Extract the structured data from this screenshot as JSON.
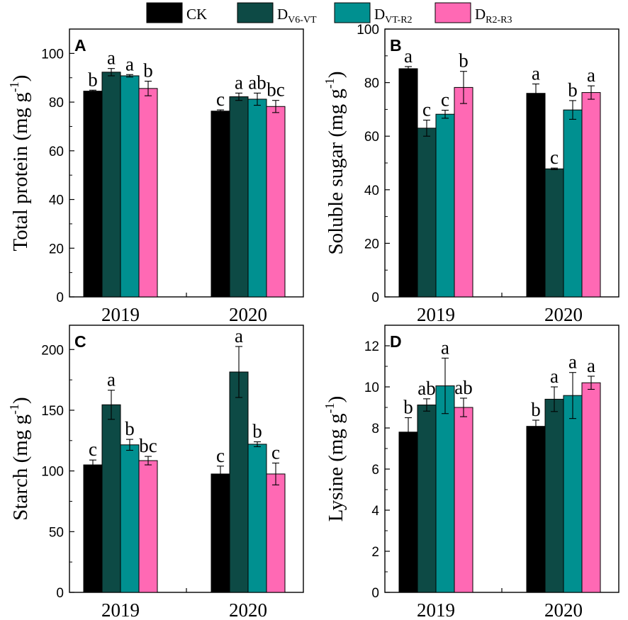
{
  "legend": {
    "items": [
      {
        "main": "CK",
        "sub": "",
        "color": "#000000"
      },
      {
        "main": "D",
        "sub": "V6-VT",
        "color": "#0d4a45"
      },
      {
        "main": "D",
        "sub": "VT-R2",
        "color": "#009090"
      },
      {
        "main": "D",
        "sub": "R2-R3",
        "color": "#ff69b4"
      }
    ]
  },
  "chart_data": [
    {
      "type": "bar",
      "panel": "A",
      "ylabel": "Total protein (mg g",
      "ylabel_sup": "-1",
      "ylabel_end": ")",
      "categories": [
        "2019",
        "2020"
      ],
      "ylim": [
        0,
        110
      ],
      "yticks": [
        0,
        20,
        40,
        60,
        80,
        100
      ],
      "series": [
        {
          "name": "CK",
          "values": [
            84.5,
            76.3
          ],
          "errors": [
            0.4,
            0.5
          ],
          "letters": [
            "b",
            "c"
          ]
        },
        {
          "name": "DV6-VT",
          "values": [
            92.3,
            82.2
          ],
          "errors": [
            1.5,
            1.5
          ],
          "letters": [
            "a",
            "a"
          ]
        },
        {
          "name": "DVT-R2",
          "values": [
            90.8,
            81.2
          ],
          "errors": [
            0.5,
            2.5
          ],
          "letters": [
            "a",
            "ab"
          ]
        },
        {
          "name": "DR2-R3",
          "values": [
            85.6,
            78.2
          ],
          "errors": [
            3.0,
            2.5
          ],
          "letters": [
            "b",
            "bc"
          ]
        }
      ]
    },
    {
      "type": "bar",
      "panel": "B",
      "ylabel": "Soluble sugar (mg g",
      "ylabel_sup": "-1",
      "ylabel_end": ")",
      "categories": [
        "2019",
        "2020"
      ],
      "ylim": [
        0,
        100
      ],
      "yticks": [
        0,
        20,
        40,
        60,
        80,
        100
      ],
      "series": [
        {
          "name": "CK",
          "values": [
            85.2,
            76.0
          ],
          "errors": [
            0.8,
            3.5
          ],
          "letters": [
            "a",
            "a"
          ]
        },
        {
          "name": "DV6-VT",
          "values": [
            63.0,
            47.8
          ],
          "errors": [
            3.0,
            0.3
          ],
          "letters": [
            "c",
            "c"
          ]
        },
        {
          "name": "DVT-R2",
          "values": [
            68.2,
            69.8
          ],
          "errors": [
            1.5,
            3.5
          ],
          "letters": [
            "c",
            "b"
          ]
        },
        {
          "name": "DR2-R3",
          "values": [
            78.2,
            76.3
          ],
          "errors": [
            6.0,
            2.5
          ],
          "letters": [
            "b",
            "a"
          ]
        }
      ]
    },
    {
      "type": "bar",
      "panel": "C",
      "ylabel": "Starch (mg g",
      "ylabel_sup": "-1",
      "ylabel_end": ")",
      "categories": [
        "2019",
        "2020"
      ],
      "ylim": [
        0,
        220
      ],
      "yticks": [
        0,
        50,
        100,
        150,
        200
      ],
      "series": [
        {
          "name": "CK",
          "values": [
            105,
            97.5
          ],
          "errors": [
            4,
            6.5
          ],
          "letters": [
            "c",
            "c"
          ]
        },
        {
          "name": "DV6-VT",
          "values": [
            154.5,
            181.5
          ],
          "errors": [
            12,
            21
          ],
          "letters": [
            "a",
            "a"
          ]
        },
        {
          "name": "DVT-R2",
          "values": [
            121.5,
            122
          ],
          "errors": [
            4.5,
            2
          ],
          "letters": [
            "b",
            "b"
          ]
        },
        {
          "name": "DR2-R3",
          "values": [
            108.5,
            97.5
          ],
          "errors": [
            3.5,
            9
          ],
          "letters": [
            "bc",
            "c"
          ]
        }
      ]
    },
    {
      "type": "bar",
      "panel": "D",
      "ylabel": "Lysine (mg g",
      "ylabel_sup": "-1",
      "ylabel_end": ")",
      "categories": [
        "2019",
        "2020"
      ],
      "ylim": [
        0,
        13
      ],
      "yticks": [
        0,
        2,
        4,
        6,
        8,
        10,
        12
      ],
      "series": [
        {
          "name": "CK",
          "values": [
            7.8,
            8.08
          ],
          "errors": [
            0.7,
            0.3
          ],
          "letters": [
            "b",
            "b"
          ]
        },
        {
          "name": "DV6-VT",
          "values": [
            9.12,
            9.4
          ],
          "errors": [
            0.3,
            0.6
          ],
          "letters": [
            "ab",
            "a"
          ]
        },
        {
          "name": "DVT-R2",
          "values": [
            10.05,
            9.58
          ],
          "errors": [
            1.35,
            1.12
          ],
          "letters": [
            "a",
            "a"
          ]
        },
        {
          "name": "DR2-R3",
          "values": [
            9.0,
            10.2
          ],
          "errors": [
            0.45,
            0.32
          ],
          "letters": [
            "ab",
            "a"
          ]
        }
      ]
    }
  ]
}
